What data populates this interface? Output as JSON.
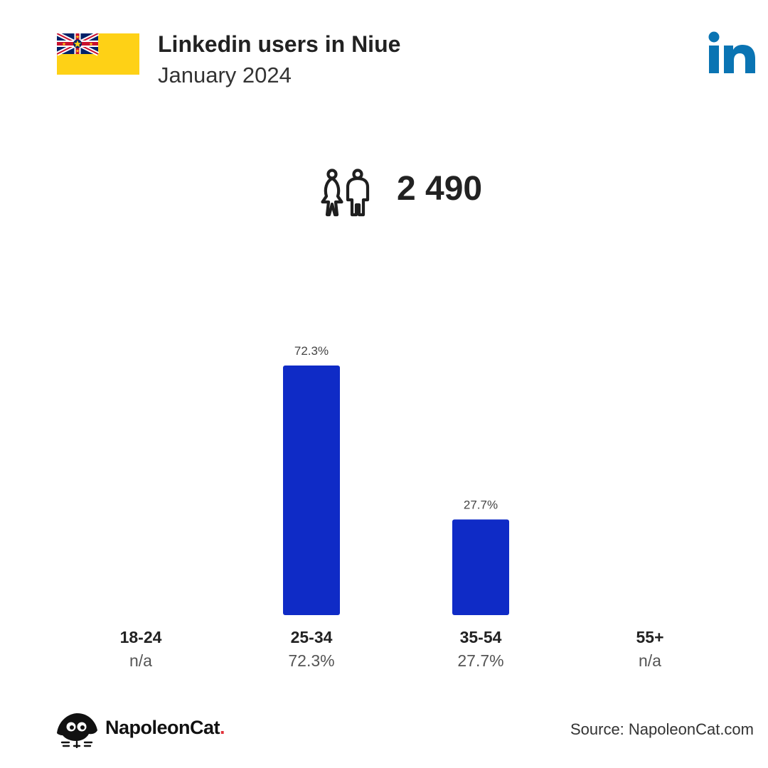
{
  "header": {
    "title": "Linkedin users in Niue",
    "subtitle": "January 2024",
    "flag_icon": "niue-flag-icon",
    "logo_icon": "linkedin-logo-icon"
  },
  "summary": {
    "icon": "users-icon",
    "total_label": "2 490"
  },
  "colors": {
    "bar": "#0f2bc6",
    "linkedin_blue": "#0a74b3",
    "flag_yellow": "#fed116",
    "flag_blue": "#012169",
    "flag_red": "#c8102e",
    "brand_dot": "#e0323a"
  },
  "chart_data": {
    "type": "bar",
    "categories": [
      "18-24",
      "25-34",
      "35-54",
      "55+"
    ],
    "values": [
      null,
      72.3,
      27.7,
      null
    ],
    "value_labels": [
      "n/a",
      "72.3%",
      "27.7%",
      "n/a"
    ],
    "bar_labels": [
      "",
      "72.3%",
      "27.7%",
      ""
    ],
    "unit": "%",
    "ylim": [
      0,
      72.3
    ],
    "grid": false
  },
  "footer": {
    "brand_name": "NapoleonCat",
    "brand_dot": ".",
    "brand_icon": "napoleoncat-logo-icon",
    "source": "Source: NapoleonCat.com"
  }
}
